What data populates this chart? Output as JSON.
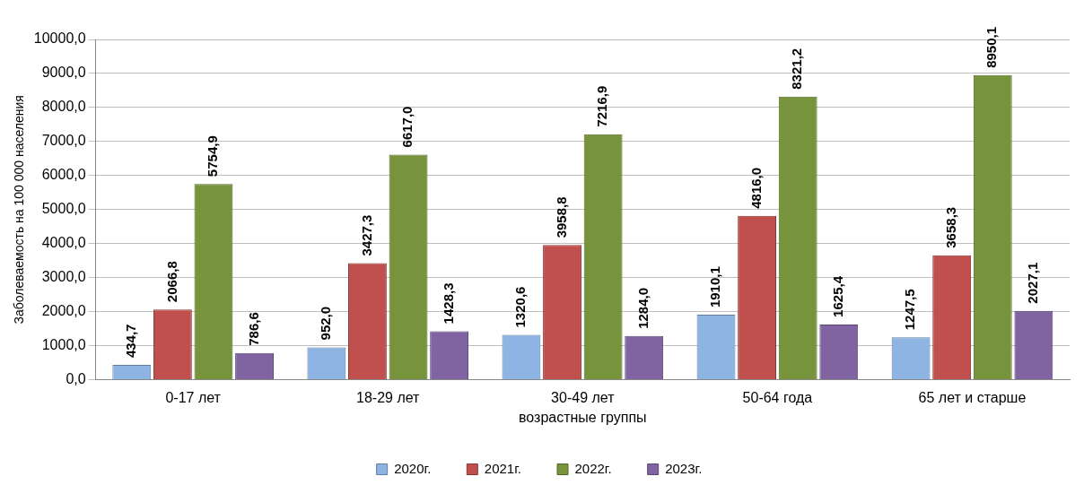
{
  "chart_data": {
    "type": "bar",
    "xlabel": "возрастные группы",
    "ylabel": "Заболеваемость на 100 000 населения",
    "categories": [
      "0-17 лет",
      "18-29 лет",
      "30-49 лет",
      "50-64 года",
      "65 лет и старше"
    ],
    "series": [
      {
        "name": "2020г.",
        "color": "#8db4e2",
        "values": [
          434.7,
          952.0,
          1320.6,
          1910.1,
          1247.5
        ],
        "value_labels": [
          "434,7",
          "952,0",
          "1320,6",
          "1910,1",
          "1247,5"
        ]
      },
      {
        "name": "2021г.",
        "color": "#c0504d",
        "values": [
          2066.8,
          3427.3,
          3958.8,
          4816.0,
          3658.3
        ],
        "value_labels": [
          "2066,8",
          "3427,3",
          "3958,8",
          "4816,0",
          "3658,3"
        ]
      },
      {
        "name": "2022г.",
        "color": "#77933c",
        "values": [
          5754.9,
          6617.0,
          7216.9,
          8321.2,
          8950.1
        ],
        "value_labels": [
          "5754,9",
          "6617,0",
          "7216,9",
          "8321,2",
          "8950,1"
        ]
      },
      {
        "name": "2023г.",
        "color": "#8064a2",
        "values": [
          786.6,
          1428.3,
          1284.0,
          1625.4,
          2027.1
        ],
        "value_labels": [
          "786,6",
          "1428,3",
          "1284,0",
          "1625,4",
          "2027,1"
        ]
      }
    ],
    "ylim": [
      0,
      10000
    ],
    "yticks": [
      {
        "value": 0,
        "label": "0,0"
      },
      {
        "value": 1000,
        "label": "1000,0"
      },
      {
        "value": 2000,
        "label": "2000,0"
      },
      {
        "value": 3000,
        "label": "3000,0"
      },
      {
        "value": 4000,
        "label": "4000,0"
      },
      {
        "value": 5000,
        "label": "5000,0"
      },
      {
        "value": 6000,
        "label": "6000,0"
      },
      {
        "value": 7000,
        "label": "7000,0"
      },
      {
        "value": 8000,
        "label": "8000,0"
      },
      {
        "value": 9000,
        "label": "9000,0"
      },
      {
        "value": 10000,
        "label": "10000,0"
      }
    ],
    "grid": "y",
    "legend": "bottom"
  }
}
